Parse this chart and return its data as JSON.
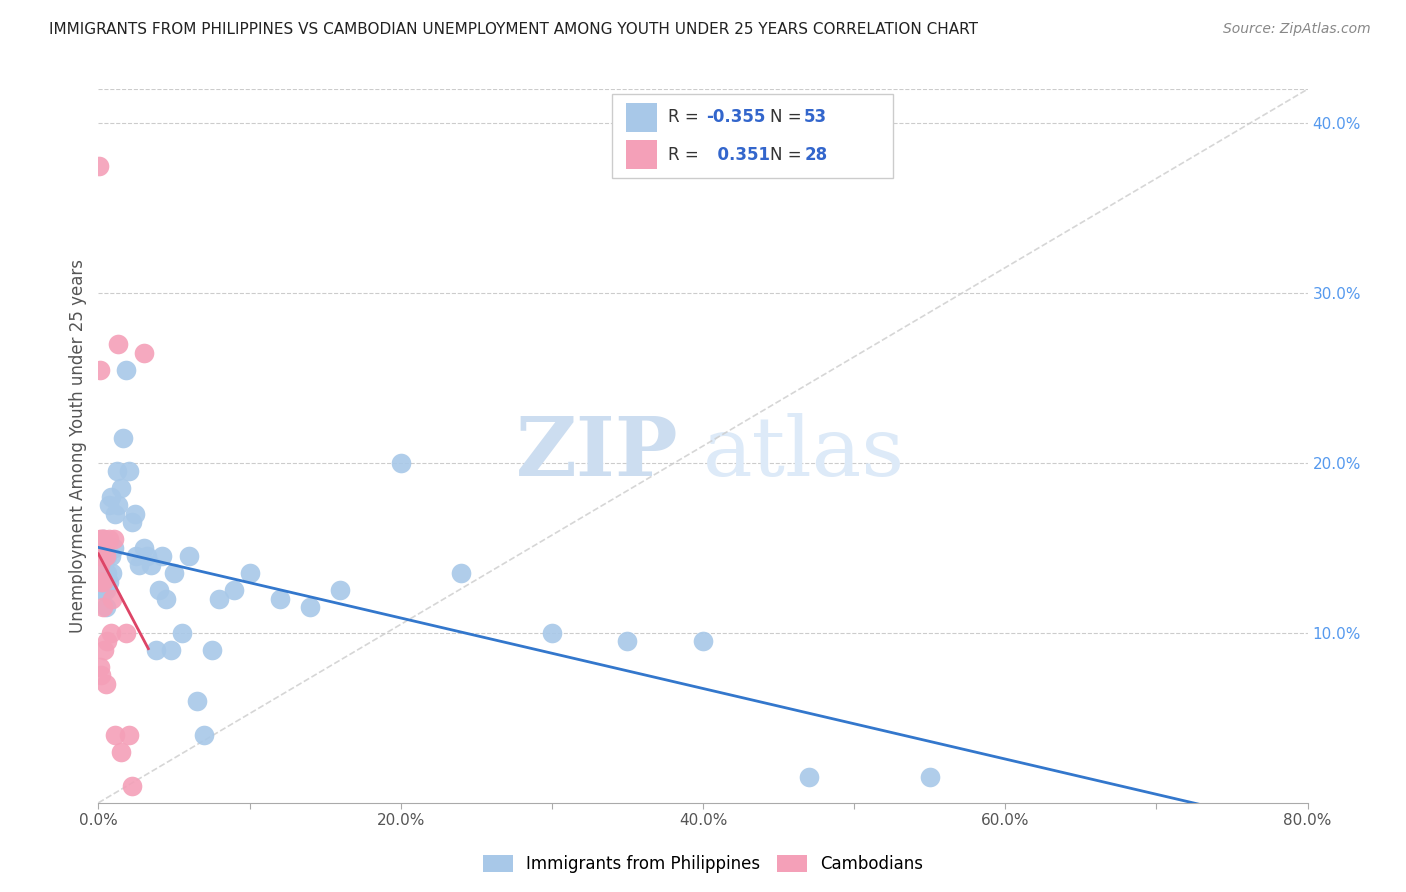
{
  "title": "IMMIGRANTS FROM PHILIPPINES VS CAMBODIAN UNEMPLOYMENT AMONG YOUTH UNDER 25 YEARS CORRELATION CHART",
  "source": "Source: ZipAtlas.com",
  "ylabel": "Unemployment Among Youth under 25 years",
  "xlim": [
    0,
    0.8
  ],
  "ylim": [
    0,
    0.42
  ],
  "blue_color": "#a8c8e8",
  "pink_color": "#f4a0b8",
  "blue_line_color": "#3377cc",
  "pink_line_color": "#dd4466",
  "watermark_zip": "ZIP",
  "watermark_atlas": "atlas",
  "blue_points_x": [
    0.001,
    0.002,
    0.003,
    0.003,
    0.004,
    0.005,
    0.005,
    0.006,
    0.006,
    0.007,
    0.007,
    0.008,
    0.008,
    0.009,
    0.01,
    0.011,
    0.012,
    0.013,
    0.015,
    0.016,
    0.018,
    0.02,
    0.022,
    0.024,
    0.025,
    0.027,
    0.03,
    0.032,
    0.035,
    0.038,
    0.04,
    0.042,
    0.045,
    0.048,
    0.05,
    0.055,
    0.06,
    0.065,
    0.07,
    0.075,
    0.08,
    0.09,
    0.1,
    0.12,
    0.14,
    0.16,
    0.2,
    0.24,
    0.3,
    0.35,
    0.4,
    0.47,
    0.55
  ],
  "blue_points_y": [
    0.135,
    0.125,
    0.155,
    0.125,
    0.145,
    0.125,
    0.115,
    0.145,
    0.135,
    0.175,
    0.13,
    0.18,
    0.145,
    0.135,
    0.15,
    0.17,
    0.195,
    0.175,
    0.185,
    0.215,
    0.255,
    0.195,
    0.165,
    0.17,
    0.145,
    0.14,
    0.15,
    0.145,
    0.14,
    0.09,
    0.125,
    0.145,
    0.12,
    0.09,
    0.135,
    0.1,
    0.145,
    0.06,
    0.04,
    0.09,
    0.12,
    0.125,
    0.135,
    0.12,
    0.115,
    0.125,
    0.2,
    0.135,
    0.1,
    0.095,
    0.095,
    0.015,
    0.015
  ],
  "pink_points_x": [
    0.0005,
    0.001,
    0.001,
    0.001,
    0.001,
    0.002,
    0.002,
    0.002,
    0.002,
    0.003,
    0.003,
    0.003,
    0.004,
    0.004,
    0.005,
    0.005,
    0.006,
    0.007,
    0.008,
    0.009,
    0.01,
    0.011,
    0.013,
    0.015,
    0.018,
    0.02,
    0.022,
    0.03
  ],
  "pink_points_y": [
    0.375,
    0.255,
    0.155,
    0.14,
    0.08,
    0.155,
    0.145,
    0.13,
    0.075,
    0.155,
    0.13,
    0.115,
    0.155,
    0.09,
    0.145,
    0.07,
    0.095,
    0.155,
    0.1,
    0.12,
    0.155,
    0.04,
    0.27,
    0.03,
    0.1,
    0.04,
    0.01,
    0.265
  ],
  "legend_R_color": "#3366cc",
  "legend_N_color": "#3366cc",
  "legend_label_color": "#333333"
}
